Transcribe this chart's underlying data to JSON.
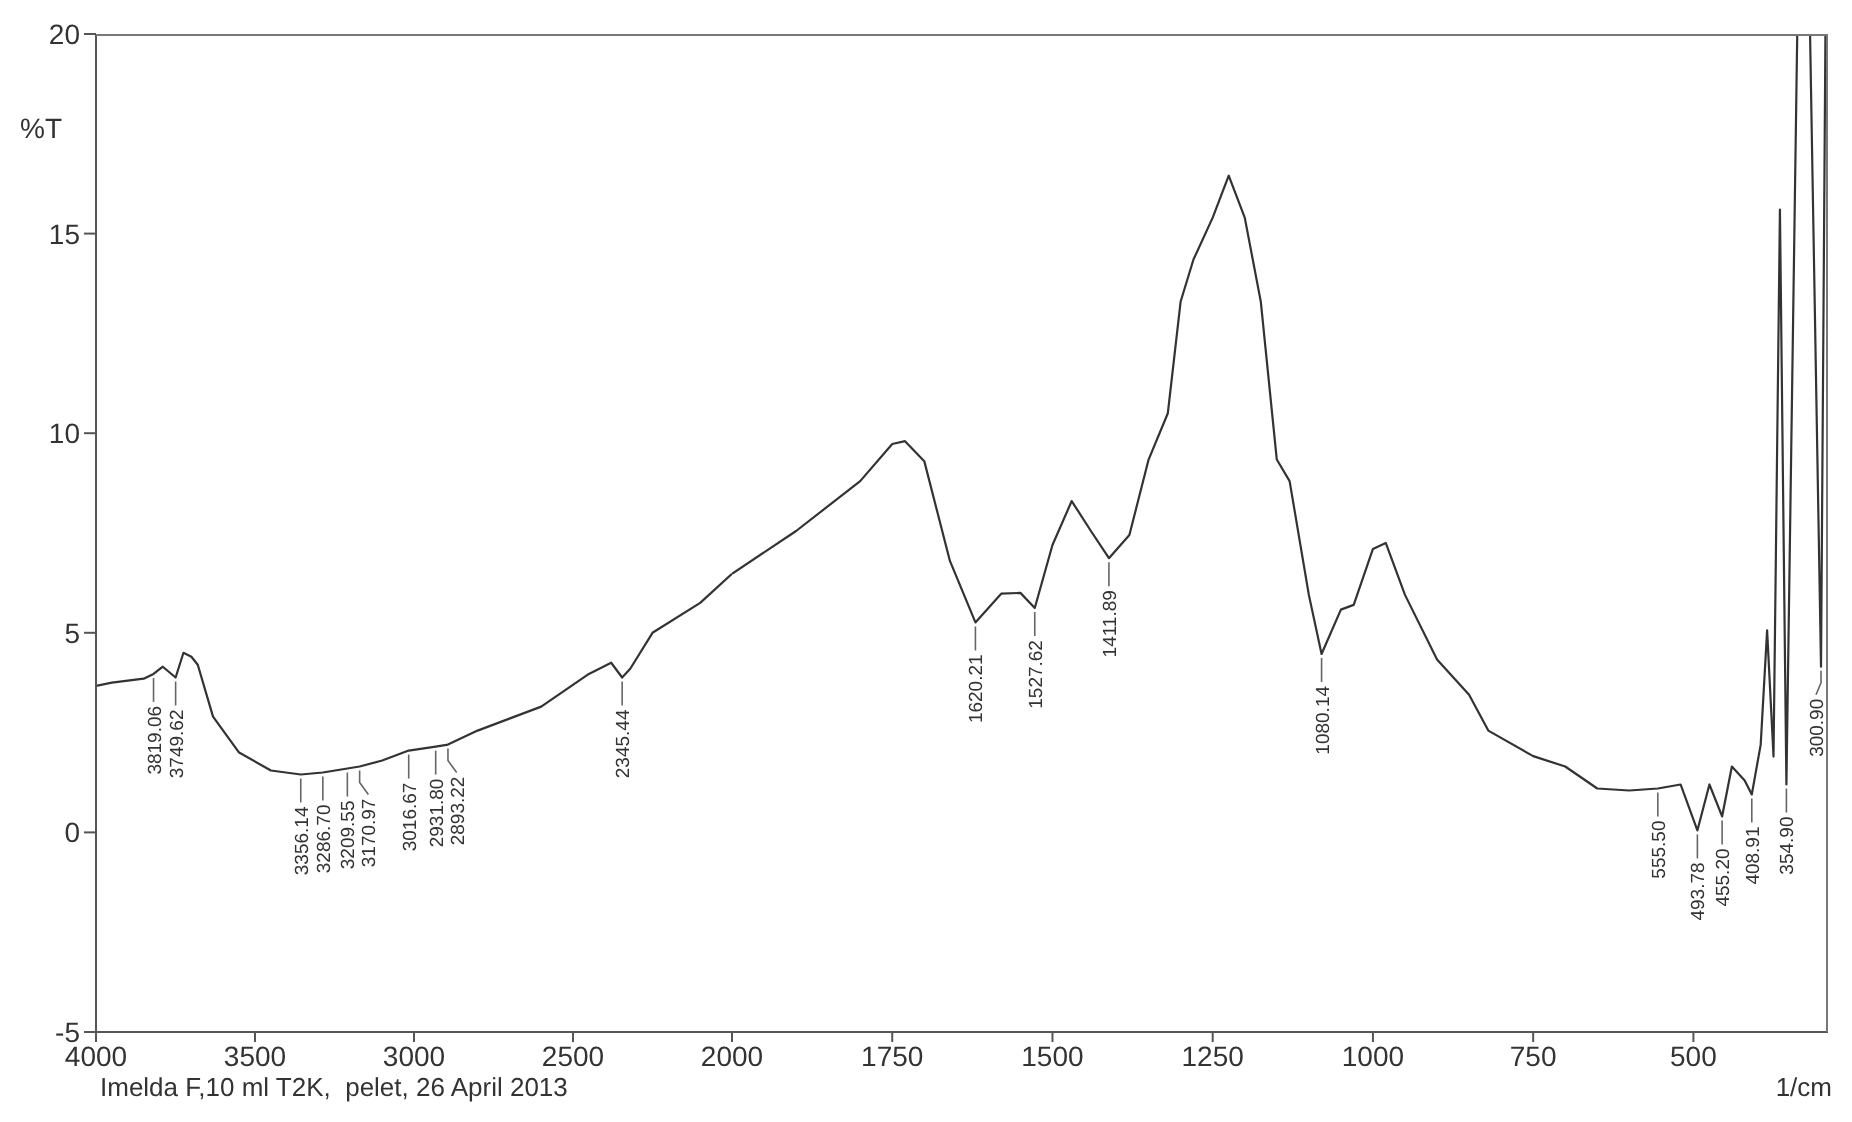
{
  "chart_data": [
    {
      "type": "line",
      "ylabel": "%T",
      "x": [
        4000,
        3950,
        3900,
        3850,
        3819.06,
        3790,
        3749.62,
        3725,
        3700,
        3680,
        3632,
        3550,
        3450,
        3356.14,
        3286.7,
        3209.55,
        3170.97,
        3100,
        3016.67,
        2931.8,
        2893.22,
        2800,
        2700,
        2600,
        2450,
        2380,
        2345.44,
        2320,
        2250,
        2100,
        2000
      ],
      "series": [
        {
          "color": "#333333",
          "values": [
            3.67,
            3.75,
            3.8,
            3.85,
            3.97,
            4.15,
            3.88,
            4.5,
            4.4,
            4.2,
            2.9,
            2.0,
            1.55,
            1.45,
            1.5,
            1.6,
            1.65,
            1.8,
            2.05,
            2.15,
            2.2,
            2.55,
            2.85,
            3.15,
            3.97,
            4.25,
            3.88,
            4.1,
            5.0,
            5.75,
            6.48
          ]
        }
      ],
      "xlim": [
        4000,
        2000
      ],
      "xticks": [
        4000,
        3500,
        3000,
        2500,
        2000
      ],
      "ylim": [
        -5,
        20
      ],
      "yticks": [
        -5,
        0,
        5,
        10,
        15,
        20
      ],
      "marker": "none",
      "line_style": "solid",
      "grid": false,
      "legend": false,
      "annotations": [
        {
          "text": "3819.06",
          "x": 3819.06,
          "y": 3.97
        },
        {
          "text": "3749.62",
          "x": 3749.62,
          "y": 3.88
        },
        {
          "text": "3356.14",
          "x": 3356.14,
          "y": 1.45
        },
        {
          "text": "3286.70",
          "x": 3286.7,
          "y": 1.5
        },
        {
          "text": "3209.55",
          "x": 3209.55,
          "y": 1.6
        },
        {
          "text": "3170.97",
          "x": 3170.97,
          "y": 1.65
        },
        {
          "text": "3016.67",
          "x": 3016.67,
          "y": 2.05
        },
        {
          "text": "2931.80",
          "x": 2931.8,
          "y": 2.15
        },
        {
          "text": "2893.22",
          "x": 2893.22,
          "y": 2.2
        },
        {
          "text": "2345.44",
          "x": 2345.44,
          "y": 3.88
        },
        "Imelda F,10 ml T2K,  pelet, 26 April 2013"
      ]
    },
    {
      "type": "line",
      "xlabel": "1/cm",
      "tick_labels": "x",
      "x": [
        2000,
        1900,
        1800,
        1750,
        1730,
        1700,
        1660,
        1620.21,
        1580,
        1550,
        1527.62,
        1500,
        1470,
        1440,
        1411.89,
        1380,
        1350,
        1320,
        1300,
        1280,
        1250,
        1225,
        1200,
        1175,
        1150,
        1130,
        1100,
        1080.14,
        1050,
        1030,
        1000,
        980,
        950,
        900,
        850,
        820,
        750,
        700,
        650,
        600,
        555.5,
        520,
        493.78,
        475,
        455.2,
        440,
        420,
        408.91,
        395,
        385,
        375,
        365,
        354.9,
        338,
        318,
        300.9,
        294
      ],
      "series": [
        {
          "color": "#333333",
          "values": [
            6.48,
            7.55,
            8.8,
            9.73,
            9.8,
            9.3,
            6.8,
            5.26,
            5.98,
            6.0,
            5.62,
            7.2,
            8.3,
            7.55,
            6.87,
            7.45,
            9.34,
            10.5,
            13.3,
            14.35,
            15.4,
            16.45,
            15.4,
            13.3,
            9.34,
            8.8,
            5.95,
            4.47,
            5.58,
            5.7,
            7.1,
            7.25,
            5.95,
            4.33,
            3.45,
            2.55,
            1.91,
            1.65,
            1.1,
            1.05,
            1.1,
            1.2,
            0.05,
            1.2,
            0.4,
            1.65,
            1.3,
            0.95,
            2.2,
            5.06,
            1.9,
            15.6,
            1.2,
            20,
            20,
            4.15,
            20
          ]
        }
      ],
      "xlim": [
        2000,
        290
      ],
      "xticks": [
        1750,
        1500,
        1250,
        1000,
        750,
        500
      ],
      "ylim": [
        -5,
        20
      ],
      "yticks": [
        -5,
        0,
        5,
        10,
        15,
        20
      ],
      "marker": "none",
      "line_style": "solid",
      "grid": false,
      "legend": false,
      "annotations": [
        {
          "text": "1620.21",
          "x": 1620.21,
          "y": 5.26
        },
        {
          "text": "1527.62",
          "x": 1527.62,
          "y": 5.62
        },
        {
          "text": "1411.89",
          "x": 1411.89,
          "y": 6.87
        },
        {
          "text": "1080.14",
          "x": 1080.14,
          "y": 4.47
        },
        {
          "text": "555.50",
          "x": 555.5,
          "y": 1.1
        },
        {
          "text": "493.78",
          "x": 493.78,
          "y": 0.05
        },
        {
          "text": "455.20",
          "x": 455.2,
          "y": 0.4
        },
        {
          "text": "408.91",
          "x": 408.91,
          "y": 0.95
        },
        {
          "text": "354.90",
          "x": 354.9,
          "y": 1.2
        },
        {
          "text": "300.90",
          "x": 300.9,
          "y": 4.15
        }
      ]
    }
  ]
}
